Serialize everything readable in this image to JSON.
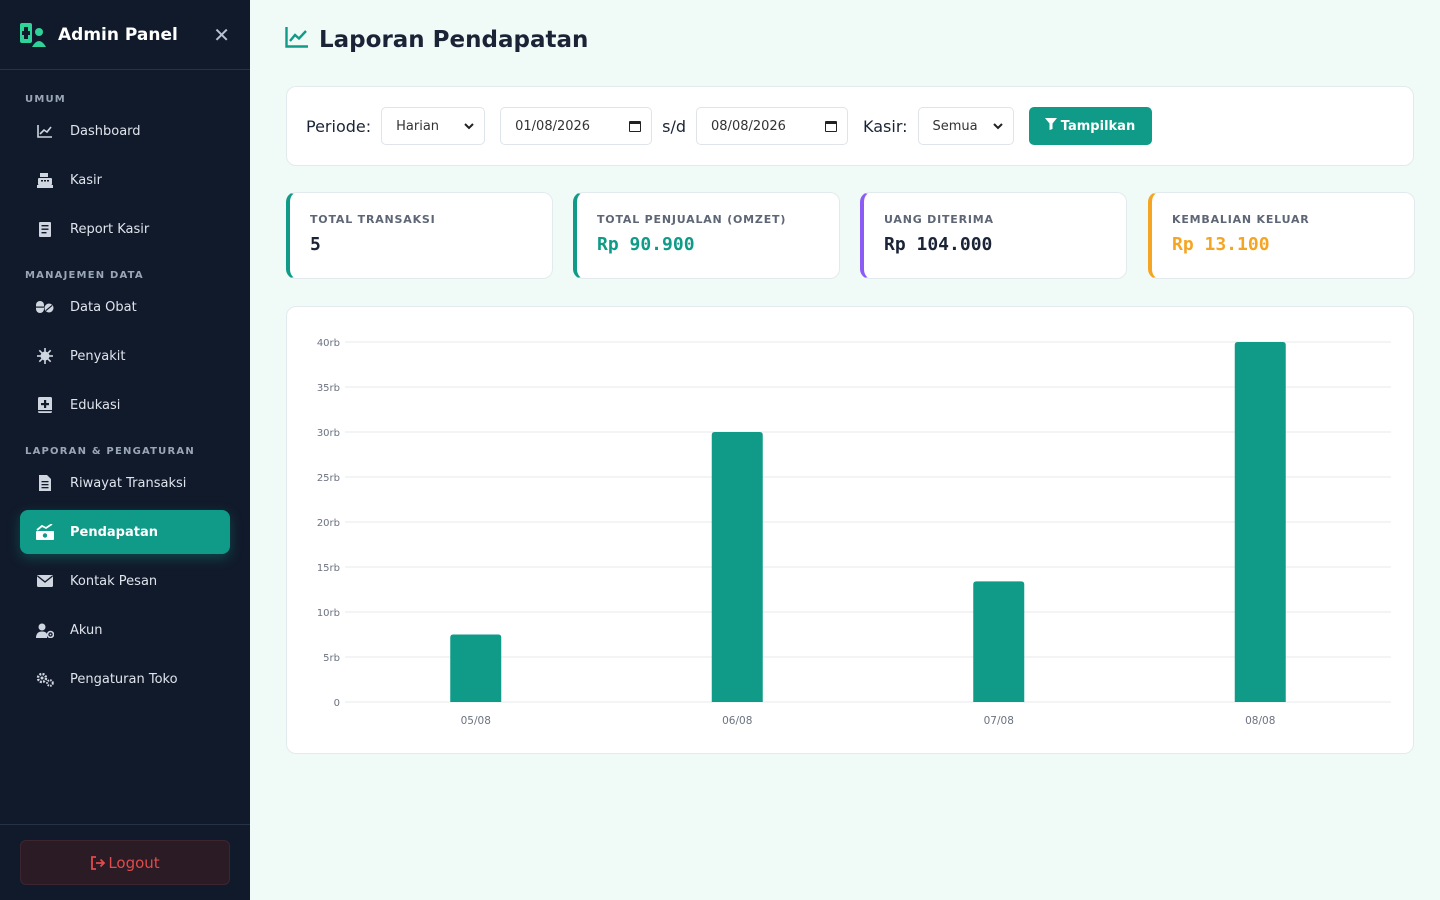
{
  "sidebar": {
    "title": "Admin Panel",
    "sections": [
      {
        "label": "UMUM",
        "items": [
          {
            "label": "Dashboard",
            "icon": "chart-line-icon"
          },
          {
            "label": "Kasir",
            "icon": "cash-register-icon"
          },
          {
            "label": "Report Kasir",
            "icon": "receipt-icon"
          }
        ]
      },
      {
        "label": "MANAJEMEN DATA",
        "items": [
          {
            "label": "Data Obat",
            "icon": "pills-icon"
          },
          {
            "label": "Penyakit",
            "icon": "virus-icon"
          },
          {
            "label": "Edukasi",
            "icon": "book-medical-icon"
          }
        ]
      },
      {
        "label": "LAPORAN & PENGATURAN",
        "items": [
          {
            "label": "Riwayat Transaksi",
            "icon": "file-invoice-icon"
          },
          {
            "label": "Pendapatan",
            "icon": "money-chart-icon",
            "active": true
          },
          {
            "label": "Kontak Pesan",
            "icon": "envelope-icon"
          },
          {
            "label": "Akun",
            "icon": "user-gear-icon"
          },
          {
            "label": "Pengaturan Toko",
            "icon": "cogs-icon"
          }
        ]
      }
    ],
    "logout_label": "Logout"
  },
  "page": {
    "title": "Laporan Pendapatan"
  },
  "filter": {
    "periode_label": "Periode:",
    "periode_value": "Harian",
    "date_from": "01/08/2026",
    "separator": "s/d",
    "date_to": "08/08/2026",
    "kasir_label": "Kasir:",
    "kasir_value": "Semua",
    "submit_label": "Tampilkan"
  },
  "stats": [
    {
      "label": "TOTAL TRANSAKSI",
      "value": "5",
      "color": "#0f9b87",
      "text_color": "#1b2437"
    },
    {
      "label": "TOTAL PENJUALAN (OMZET)",
      "value": "Rp 90.900",
      "color": "#0f9b87",
      "text_color": "#0f9b87"
    },
    {
      "label": "UANG DITERIMA",
      "value": "Rp 104.000",
      "color": "#8b5cf6",
      "text_color": "#1b2437"
    },
    {
      "label": "KEMBALIAN KELUAR",
      "value": "Rp 13.100",
      "color": "#f5a524",
      "text_color": "#f5a524"
    }
  ],
  "colors": {
    "accent": "#0f9b87",
    "sidebar_bg": "#111a2b",
    "danger": "#e04b4b"
  },
  "chart_data": {
    "type": "bar",
    "categories": [
      "05/08",
      "06/08",
      "07/08",
      "08/08"
    ],
    "values": [
      7500,
      30000,
      13400,
      40000
    ],
    "ylim": [
      0,
      40000
    ],
    "yticks": [
      0,
      5000,
      10000,
      15000,
      20000,
      25000,
      30000,
      35000,
      40000
    ],
    "ytick_labels": [
      "0",
      "5rb",
      "10rb",
      "15rb",
      "20rb",
      "25rb",
      "30rb",
      "35rb",
      "40rb"
    ],
    "grid": true,
    "bar_color": "#0f9b87"
  }
}
